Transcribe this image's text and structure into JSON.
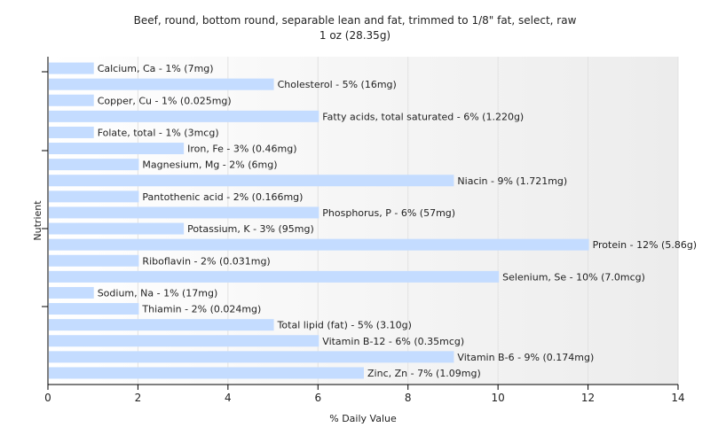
{
  "chart_data": {
    "type": "bar",
    "orientation": "horizontal",
    "title": "Beef, round, bottom round, separable lean and fat, trimmed to 1/8\" fat, select, raw",
    "subtitle": "1 oz (28.35g)",
    "xlabel": "% Daily Value",
    "ylabel": "Nutrient",
    "xlim": [
      0,
      14
    ],
    "xticks": [
      0,
      2,
      4,
      6,
      8,
      10,
      12,
      14
    ],
    "grid": true,
    "bar_color": "#c4dcff",
    "categories": [
      "Calcium, Ca",
      "Cholesterol",
      "Copper, Cu",
      "Fatty acids, total saturated",
      "Folate, total",
      "Iron, Fe",
      "Magnesium, Mg",
      "Niacin",
      "Pantothenic acid",
      "Phosphorus, P",
      "Potassium, K",
      "Protein",
      "Riboflavin",
      "Selenium, Se",
      "Sodium, Na",
      "Thiamin",
      "Total lipid (fat)",
      "Vitamin B-12",
      "Vitamin B-6",
      "Zinc, Zn"
    ],
    "values": [
      1,
      5,
      1,
      6,
      1,
      3,
      2,
      9,
      2,
      6,
      3,
      12,
      2,
      10,
      1,
      2,
      5,
      6,
      9,
      7
    ],
    "labels": [
      "Calcium, Ca - 1% (7mg)",
      "Cholesterol - 5% (16mg)",
      "Copper, Cu - 1% (0.025mg)",
      "Fatty acids, total saturated - 6% (1.220g)",
      "Folate, total - 1% (3mcg)",
      "Iron, Fe - 3% (0.46mg)",
      "Magnesium, Mg - 2% (6mg)",
      "Niacin - 9% (1.721mg)",
      "Pantothenic acid - 2% (0.166mg)",
      "Phosphorus, P - 6% (57mg)",
      "Potassium, K - 3% (95mg)",
      "Protein - 12% (5.86g)",
      "Riboflavin - 2% (0.031mg)",
      "Selenium, Se - 10% (7.0mcg)",
      "Sodium, Na - 1% (17mg)",
      "Thiamin - 2% (0.024mg)",
      "Total lipid (fat) - 5% (3.10g)",
      "Vitamin B-12 - 6% (0.35mcg)",
      "Vitamin B-6 - 9% (0.174mg)",
      "Zinc, Zn - 7% (1.09mg)"
    ]
  }
}
